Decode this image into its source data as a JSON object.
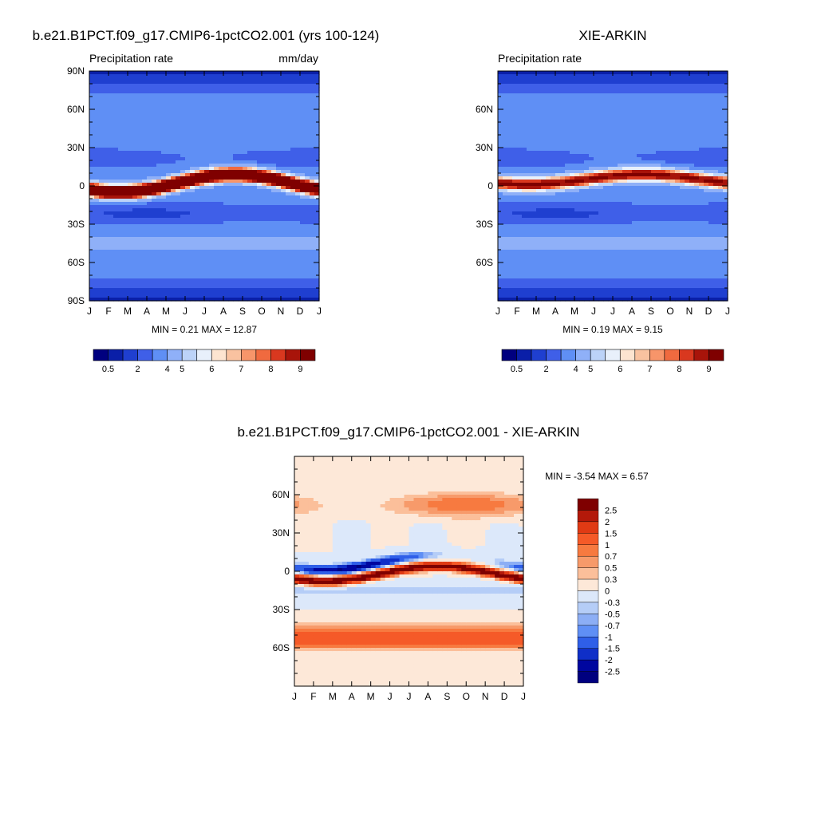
{
  "chart_data": [
    {
      "type": "heatmap",
      "title": "b.e21.B1PCT.f09_g17.CMIP6-1pctCO2.001 (yrs 100-124)",
      "subtitle_left": "Precipitation rate",
      "subtitle_right": "mm/day",
      "x_ticks": [
        "J",
        "F",
        "M",
        "A",
        "M",
        "J",
        "J",
        "A",
        "S",
        "O",
        "N",
        "D",
        "J"
      ],
      "y_ticks": [
        "90N",
        "60N",
        "30N",
        "0",
        "30S",
        "60S",
        "90S"
      ],
      "y_tick_values": [
        90,
        60,
        30,
        0,
        -30,
        -60,
        -90
      ],
      "ylim": [
        -90,
        90
      ],
      "min_max": "MIN =   0.21 MAX =   12.87",
      "colorbar_levels": [
        "0.5",
        "2",
        "4",
        "5",
        "6",
        "7",
        "8",
        "9"
      ],
      "colorbar_colors": [
        "#00007f",
        "#0a1fa8",
        "#1f3fd0",
        "#3f5fe8",
        "#5f8ff5",
        "#8fb0f8",
        "#bcd3f8",
        "#e8f0fb",
        "#fde4d0",
        "#f9c2a0",
        "#f7956a",
        "#f06a3f",
        "#d9381f",
        "#a8140a",
        "#7f0000"
      ],
      "field": {
        "background_mm_day": 2.5,
        "itcz_peak_mm_day": 12.87,
        "itcz_mean_lat_deg": 2,
        "itcz_seasonal_amp_deg": 7,
        "itcz_phase_peak_month": "Aug",
        "polar_min_mm_day": 0.21
      }
    },
    {
      "type": "heatmap",
      "title": "XIE-ARKIN",
      "subtitle_left": "Precipitation rate",
      "x_ticks": [
        "J",
        "F",
        "M",
        "A",
        "M",
        "J",
        "J",
        "A",
        "S",
        "O",
        "N",
        "D",
        "J"
      ],
      "y_ticks": [
        "60N",
        "30N",
        "0",
        "30S",
        "60S"
      ],
      "y_tick_values": [
        60,
        30,
        0,
        -30,
        -60
      ],
      "ylim": [
        -90,
        90
      ],
      "min_max": "MIN =   0.19 MAX =   9.15",
      "colorbar_levels": [
        "0.5",
        "2",
        "4",
        "5",
        "6",
        "7",
        "8",
        "9"
      ],
      "colorbar_colors": [
        "#00007f",
        "#0a1fa8",
        "#1f3fd0",
        "#3f5fe8",
        "#5f8ff5",
        "#8fb0f8",
        "#bcd3f8",
        "#e8f0fb",
        "#fde4d0",
        "#f9c2a0",
        "#f7956a",
        "#f06a3f",
        "#d9381f",
        "#a8140a",
        "#7f0000"
      ],
      "field": {
        "background_mm_day": 2.5,
        "itcz_peak_mm_day": 9.15,
        "itcz_mean_lat_deg": 5,
        "itcz_seasonal_amp_deg": 4,
        "itcz_phase_peak_month": "Aug",
        "polar_min_mm_day": 0.19
      }
    },
    {
      "type": "heatmap",
      "title": "b.e21.B1PCT.f09_g17.CMIP6-1pctCO2.001 - XIE-ARKIN",
      "x_ticks": [
        "J",
        "F",
        "M",
        "A",
        "M",
        "J",
        "J",
        "A",
        "S",
        "O",
        "N",
        "D",
        "J"
      ],
      "y_ticks": [
        "60N",
        "30N",
        "0",
        "30S",
        "60S"
      ],
      "y_tick_values": [
        60,
        30,
        0,
        -30,
        -60
      ],
      "ylim": [
        -90,
        90
      ],
      "min_max": "MIN =  -3.54 MAX =   6.57",
      "colorbar_levels": [
        "2.5",
        "2",
        "1.5",
        "1",
        "0.7",
        "0.5",
        "0.3",
        "0",
        "-0.3",
        "-0.5",
        "-0.7",
        "-1",
        "-1.5",
        "-2",
        "-2.5"
      ],
      "colorbar_colors": [
        "#7f0000",
        "#b3190a",
        "#e03a14",
        "#f55a28",
        "#f77a40",
        "#f79a6a",
        "#fbbf9a",
        "#fde8d8",
        "#dce8fa",
        "#b5cdf7",
        "#8caef5",
        "#5f8ff5",
        "#2f5fe8",
        "#0f2fc8",
        "#00069f",
        "#00007f"
      ],
      "field": {
        "itcz_dipole_mm_day": 6.57,
        "north_flank_min_mm_day": -3.54,
        "southern_midlat_bias_mm_day": 1.5,
        "northern_midlat_bias_mm_day": 0.8
      }
    }
  ]
}
